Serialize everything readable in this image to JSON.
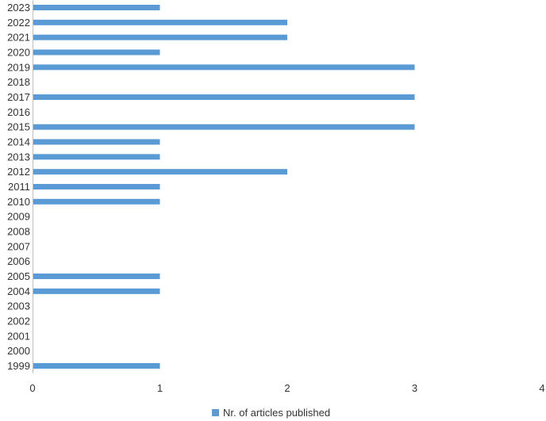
{
  "chart_data": {
    "type": "bar",
    "orientation": "horizontal",
    "categories": [
      "1999",
      "2000",
      "2001",
      "2002",
      "2003",
      "2004",
      "2005",
      "2006",
      "2007",
      "2008",
      "2009",
      "2010",
      "2011",
      "2012",
      "2013",
      "2014",
      "2015",
      "2016",
      "2017",
      "2018",
      "2019",
      "2020",
      "2021",
      "2022",
      "2023"
    ],
    "series": [
      {
        "name": "Nr. of articles published",
        "values": [
          1,
          0,
          0,
          0,
          0,
          1,
          1,
          0,
          0,
          0,
          0,
          1,
          1,
          2,
          1,
          1,
          3,
          0,
          3,
          0,
          3,
          1,
          2,
          2,
          1
        ]
      }
    ],
    "xlim": [
      0,
      4
    ],
    "xticks": [
      "0",
      "1",
      "2",
      "3",
      "4"
    ],
    "grid": false,
    "legend_position": "bottom",
    "colors": {
      "bar": "#5b9bd5",
      "axis": "#bfbfbf",
      "text": "#333333"
    }
  }
}
